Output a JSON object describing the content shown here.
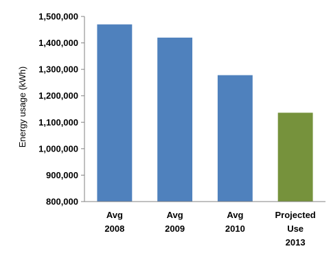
{
  "chart_data": {
    "type": "bar",
    "categories": [
      [
        "Avg",
        "2008"
      ],
      [
        "Avg",
        "2009"
      ],
      [
        "Avg",
        "2010"
      ],
      [
        "Projected",
        "Use",
        "2013"
      ]
    ],
    "values": [
      1470000,
      1420000,
      1278000,
      1136000
    ],
    "bar_colors": [
      "#4f81bd",
      "#4f81bd",
      "#4f81bd",
      "#76923c"
    ],
    "ylabel": "Energy usage (kWh)",
    "ylim": [
      800000,
      1500000
    ],
    "yticks": [
      800000,
      900000,
      1000000,
      1100000,
      1200000,
      1300000,
      1400000,
      1500000
    ],
    "ytick_labels": [
      "800,000",
      "900,000",
      "1,000,000",
      "1,100,000",
      "1,200,000",
      "1,300,000",
      "1,400,000",
      "1,500,000"
    ],
    "grid": false,
    "legend": "none"
  }
}
